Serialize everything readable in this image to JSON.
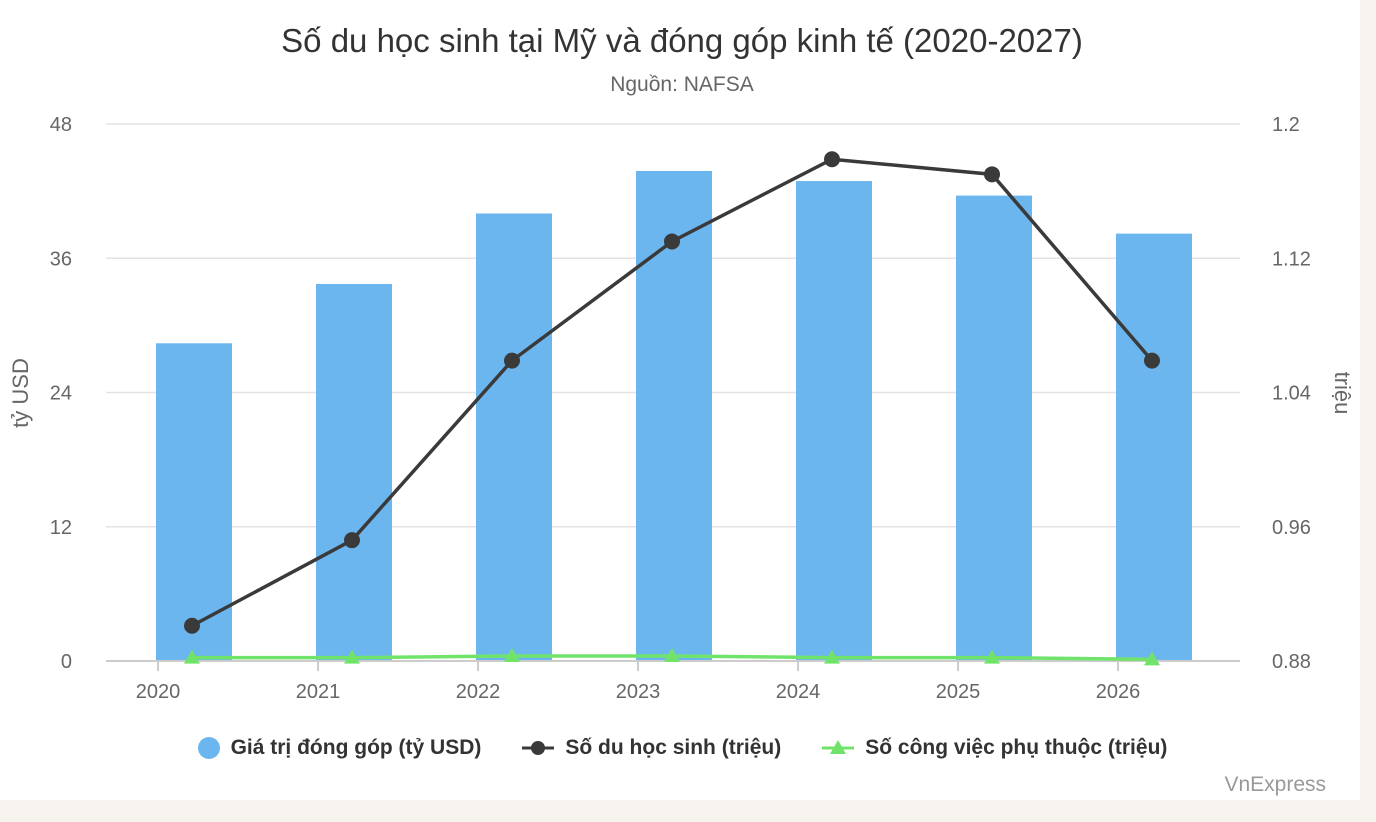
{
  "chart_data": {
    "type": "bar",
    "title": "Số du học sinh tại Mỹ và đóng góp kinh tế (2020-2027)",
    "subtitle": "Nguồn: NAFSA",
    "credit": "VnExpress",
    "categories": [
      "2020",
      "2021",
      "2022",
      "2023",
      "2024",
      "2025",
      "2026"
    ],
    "y_left": {
      "label": "tỷ USD",
      "min": 0,
      "max": 48,
      "ticks": [
        "0",
        "12",
        "24",
        "36",
        "48"
      ]
    },
    "y_right": {
      "label": "triệu",
      "min": 0.88,
      "max": 1.2,
      "ticks": [
        "0.88",
        "0.96",
        "1.04",
        "1.12",
        "1.2"
      ]
    },
    "grid": true,
    "legend_position": "bottom",
    "series": [
      {
        "name": "Giá trị đóng góp (tỷ USD)",
        "type": "bar",
        "axis": "left",
        "color": "#6cb6f0",
        "values": [
          28.4,
          33.7,
          40,
          43.8,
          42.9,
          41.6,
          38.2
        ]
      },
      {
        "name": "Số du học sinh (triệu)",
        "type": "line",
        "axis": "right",
        "color": "#3a3a3a",
        "marker": "circle",
        "values": [
          0.901,
          0.952,
          1.059,
          1.13,
          1.179,
          1.17,
          1.059
        ]
      },
      {
        "name": "Số công việc phụ thuộc (triệu)",
        "type": "line",
        "axis": "right",
        "color": "#70e46a",
        "marker": "triangle",
        "values": [
          0.882,
          0.882,
          0.883,
          0.883,
          0.882,
          0.882,
          0.881
        ]
      }
    ]
  }
}
